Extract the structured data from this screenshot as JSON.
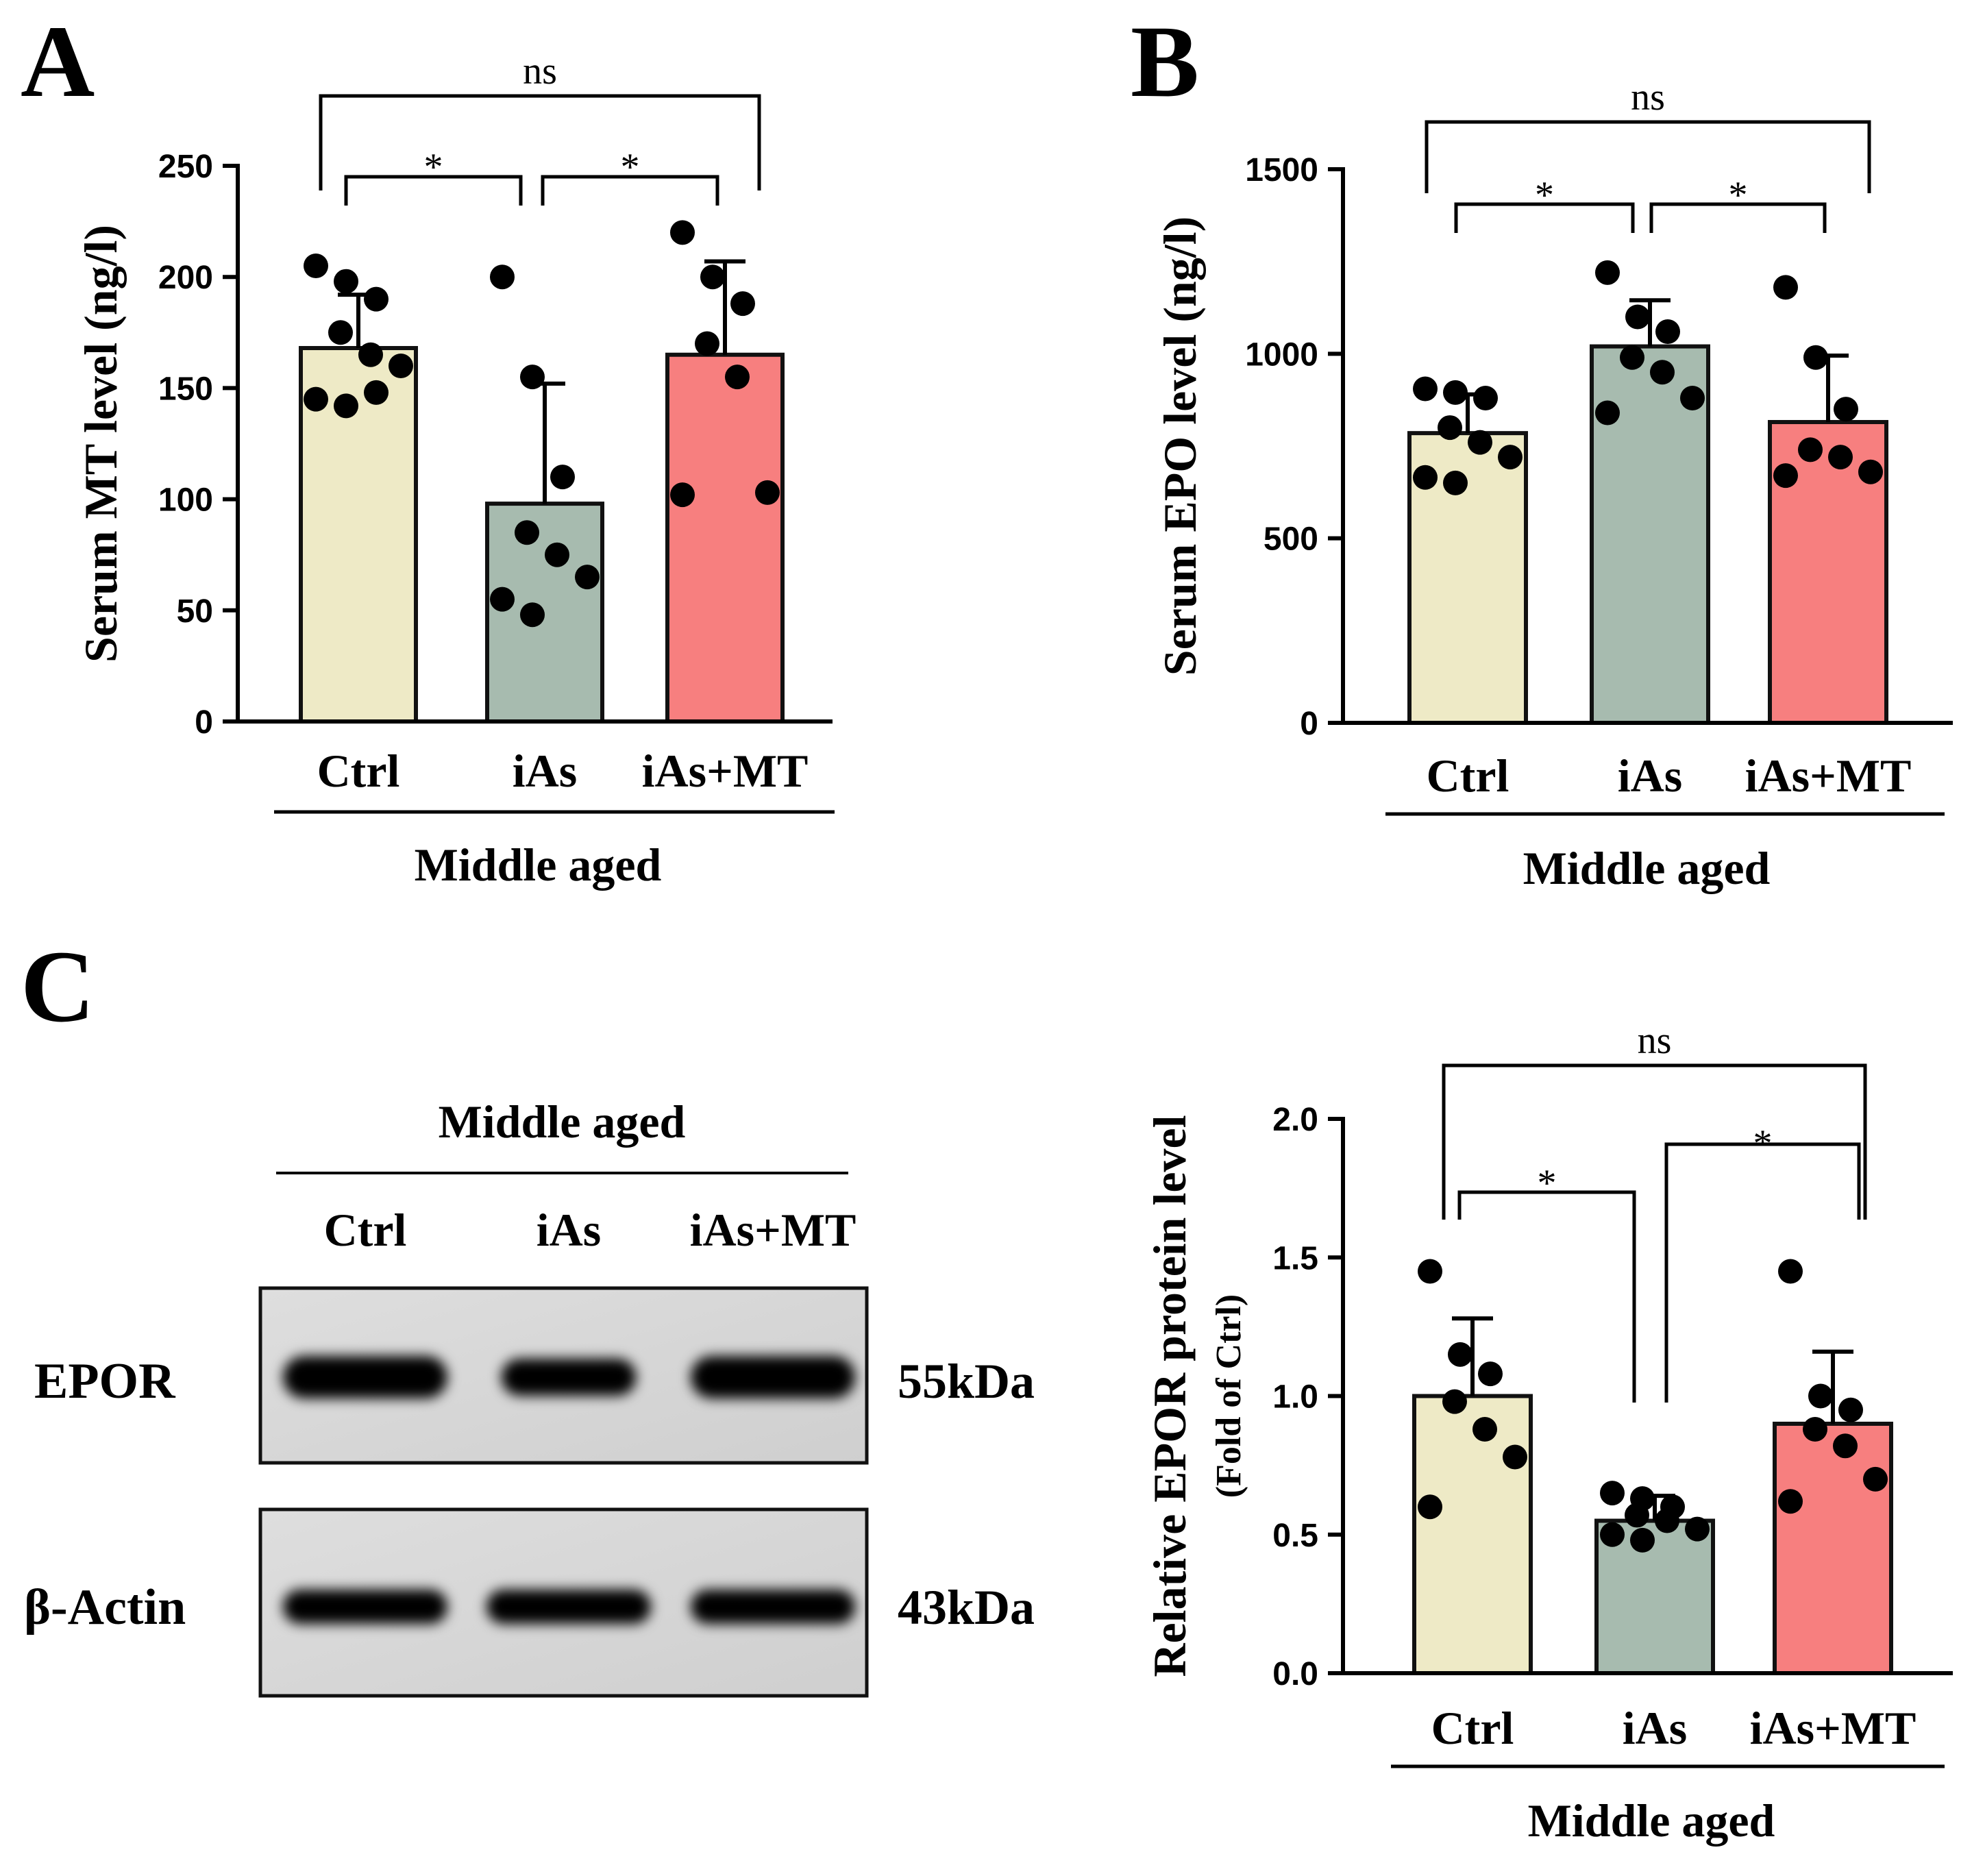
{
  "figure": {
    "panels": {
      "A": "A",
      "B": "B",
      "C": "C"
    },
    "colors": {
      "Ctrl": "#eeeac6",
      "iAs": "#a7bbaf",
      "iAs+MT": "#f77f7f"
    }
  },
  "chart_data": [
    {
      "id": "A",
      "type": "bar",
      "panel": "A",
      "ylabel": "Serum MT level (ng/l)",
      "ylim": [
        0,
        250
      ],
      "yticks": [
        0,
        50,
        100,
        150,
        200,
        250
      ],
      "ytick_labels": [
        "0",
        "50",
        "100",
        "150",
        "200",
        "250"
      ],
      "categories": [
        "Ctrl",
        "iAs",
        "iAs+MT"
      ],
      "group_label": "Middle aged",
      "means": [
        168,
        98,
        165
      ],
      "sd": [
        24,
        54,
        42
      ],
      "points": [
        [
          205,
          198,
          190,
          175,
          165,
          160,
          145,
          142,
          148
        ],
        [
          200,
          155,
          110,
          85,
          75,
          65,
          55,
          48
        ],
        [
          220,
          200,
          188,
          170,
          155,
          103,
          102
        ]
      ],
      "comparisons": [
        {
          "pair": [
            0,
            1
          ],
          "label": "*"
        },
        {
          "pair": [
            1,
            2
          ],
          "label": "*"
        },
        {
          "pair": [
            0,
            2
          ],
          "label": "ns"
        }
      ]
    },
    {
      "id": "B",
      "type": "bar",
      "panel": "B",
      "ylabel": "Serum EPO level (ng/l)",
      "ylim": [
        0,
        1500
      ],
      "yticks": [
        0,
        500,
        1000,
        1500
      ],
      "ytick_labels": [
        "0",
        "500",
        "1000",
        "1500"
      ],
      "categories": [
        "Ctrl",
        "iAs",
        "iAs+MT"
      ],
      "group_label": "Middle aged",
      "means": [
        785,
        1020,
        815
      ],
      "sd": [
        105,
        125,
        180
      ],
      "points": [
        [
          905,
          895,
          880,
          800,
          760,
          720,
          665,
          650
        ],
        [
          1220,
          1100,
          1060,
          990,
          950,
          880,
          840
        ],
        [
          1180,
          990,
          850,
          740,
          720,
          680,
          670
        ]
      ],
      "comparisons": [
        {
          "pair": [
            0,
            1
          ],
          "label": "*"
        },
        {
          "pair": [
            1,
            2
          ],
          "label": "*"
        },
        {
          "pair": [
            0,
            2
          ],
          "label": "ns"
        }
      ]
    },
    {
      "id": "C",
      "type": "bar",
      "panel": "C",
      "ylabel": "Relative EPOR protein level",
      "ylabel2": "(Fold of Ctrl)",
      "ylim": [
        0,
        2.0
      ],
      "yticks": [
        0,
        0.5,
        1.0,
        1.5,
        2.0
      ],
      "ytick_labels": [
        "0.0",
        "0.5",
        "1.0",
        "1.5",
        "2.0"
      ],
      "categories": [
        "Ctrl",
        "iAs",
        "iAs+MT"
      ],
      "group_label": "Middle aged",
      "means": [
        1.0,
        0.55,
        0.9
      ],
      "sd": [
        0.28,
        0.09,
        0.26
      ],
      "points": [
        [
          1.45,
          1.15,
          1.08,
          0.98,
          0.88,
          0.78,
          0.6
        ],
        [
          0.65,
          0.63,
          0.6,
          0.57,
          0.55,
          0.52,
          0.5,
          0.48
        ],
        [
          1.45,
          1.0,
          0.95,
          0.88,
          0.82,
          0.7,
          0.62
        ]
      ],
      "comparisons": [
        {
          "pair": [
            0,
            1
          ],
          "label": "*"
        },
        {
          "pair": [
            1,
            2
          ],
          "label": "*"
        },
        {
          "pair": [
            0,
            2
          ],
          "label": "ns"
        }
      ]
    }
  ],
  "blot": {
    "group_label": "Middle aged",
    "lanes": [
      "Ctrl",
      "iAs",
      "iAs+MT"
    ],
    "rows": [
      {
        "label": "EPOR",
        "kda": "55kDa",
        "intensities": [
          1.0,
          0.72,
          1.0
        ]
      },
      {
        "label": "β-Actin",
        "kda": "43kDa",
        "intensities": [
          1.0,
          1.0,
          1.0
        ]
      }
    ]
  }
}
